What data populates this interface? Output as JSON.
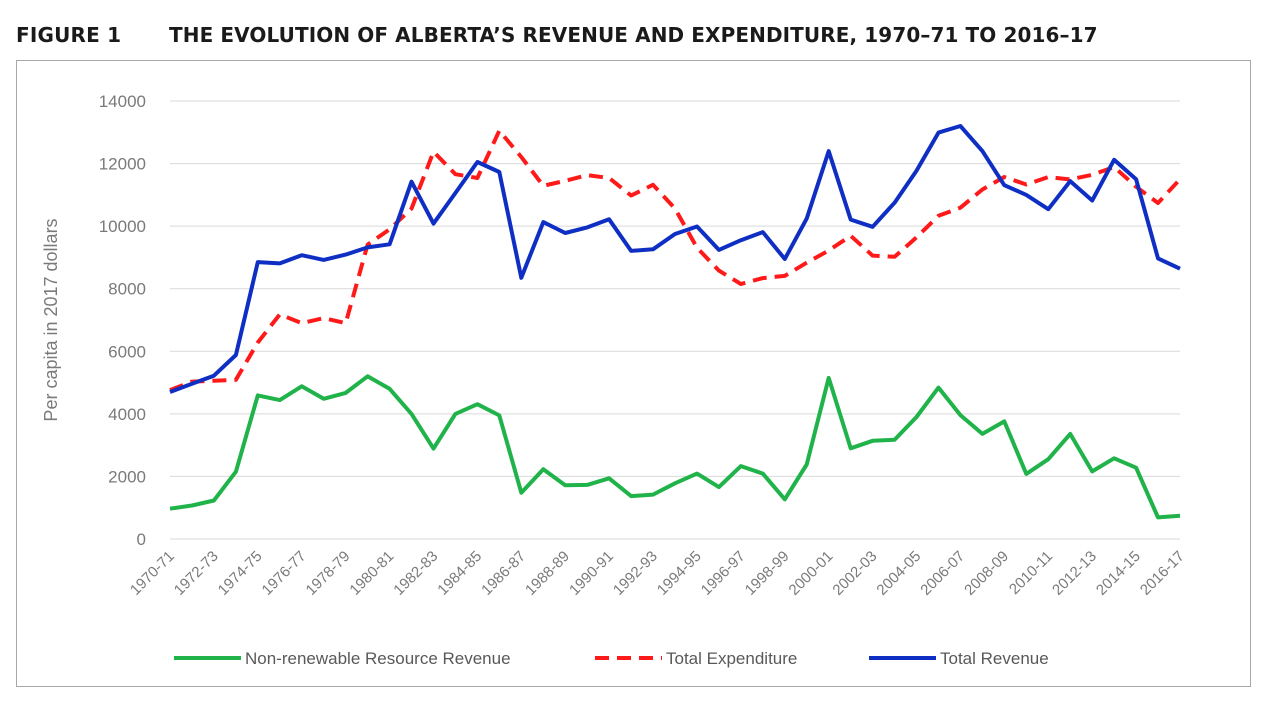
{
  "figure": {
    "label": "FIGURE 1",
    "title": "THE EVOLUTION OF ALBERTA’S REVENUE AND EXPENDITURE, 1970–71 TO 2016–17"
  },
  "chart_data": {
    "type": "line",
    "title": "THE EVOLUTION OF ALBERTA’S REVENUE AND EXPENDITURE, 1970–71 TO 2016–17",
    "xlabel": "",
    "ylabel": "Per capita in 2017 dollars",
    "ylim": [
      0,
      14000
    ],
    "yticks": [
      0,
      2000,
      4000,
      6000,
      8000,
      10000,
      12000,
      14000
    ],
    "grid": true,
    "legend_position": "bottom",
    "categories": [
      "1970-71",
      "1971-72",
      "1972-73",
      "1973-74",
      "1974-75",
      "1975-76",
      "1976-77",
      "1977-78",
      "1978-79",
      "1979-80",
      "1980-81",
      "1981-82",
      "1982-83",
      "1983-84",
      "1984-85",
      "1985-86",
      "1986-87",
      "1987-88",
      "1988-89",
      "1989-90",
      "1990-91",
      "1991-92",
      "1992-93",
      "1993-94",
      "1994-95",
      "1995-96",
      "1996-97",
      "1997-98",
      "1998-99",
      "1999-00",
      "2000-01",
      "2001-02",
      "2002-03",
      "2003-04",
      "2004-05",
      "2005-06",
      "2006-07",
      "2007-08",
      "2008-09",
      "2009-10",
      "2010-11",
      "2011-12",
      "2012-13",
      "2013-14",
      "2014-15",
      "2015-16",
      "2016-17"
    ],
    "tick_labels": [
      "1970-71",
      "1972-73",
      "1974-75",
      "1976-77",
      "1978-79",
      "1980-81",
      "1982-83",
      "1984-85",
      "1986-87",
      "1988-89",
      "1990-91",
      "1992-93",
      "1994-95",
      "1996-97",
      "1998-99",
      "2000-01",
      "2002-03",
      "2004-05",
      "2006-07",
      "2008-09",
      "2010-11",
      "2012-13",
      "2014-15",
      "2016-17"
    ],
    "series": [
      {
        "name": "Non-renewable Resource Revenue",
        "color": "#1fb34a",
        "style": "solid",
        "values": [
          970,
          1070,
          1230,
          2150,
          4590,
          4440,
          4880,
          4480,
          4670,
          5200,
          4800,
          4000,
          2890,
          4000,
          4310,
          3950,
          1480,
          2230,
          1720,
          1730,
          1940,
          1370,
          1420,
          1780,
          2090,
          1660,
          2330,
          2090,
          1270,
          2380,
          5150,
          2900,
          3140,
          3170,
          3900,
          4840,
          3960,
          3360,
          3760,
          2080,
          2550,
          3360,
          2160,
          2580,
          2280,
          690,
          740
        ]
      },
      {
        "name": "Total Expenditure",
        "color": "#ff1a1a",
        "style": "dashed",
        "values": [
          4760,
          5030,
          5060,
          5090,
          6280,
          7180,
          6900,
          7060,
          6900,
          9410,
          9900,
          10560,
          12380,
          11660,
          11540,
          13050,
          12210,
          11290,
          11450,
          11630,
          11540,
          10980,
          11320,
          10560,
          9310,
          8580,
          8150,
          8340,
          8410,
          8830,
          9220,
          9690,
          9060,
          9020,
          9640,
          10330,
          10590,
          11170,
          11570,
          11330,
          11570,
          11490,
          11640,
          11890,
          11260,
          10740,
          11500
        ]
      },
      {
        "name": "Total Revenue",
        "color": "#0f2fc4",
        "style": "solid",
        "values": [
          4700,
          4960,
          5220,
          5880,
          8850,
          8810,
          9070,
          8920,
          9090,
          9320,
          9420,
          11420,
          10080,
          11060,
          12050,
          11730,
          8350,
          10130,
          9780,
          9960,
          10220,
          9210,
          9260,
          9750,
          9990,
          9240,
          9550,
          9810,
          8950,
          10240,
          12400,
          10210,
          9980,
          10750,
          11770,
          12990,
          13200,
          12400,
          11310,
          11000,
          10540,
          11440,
          10820,
          12120,
          11500,
          8970,
          8640
        ]
      }
    ]
  }
}
